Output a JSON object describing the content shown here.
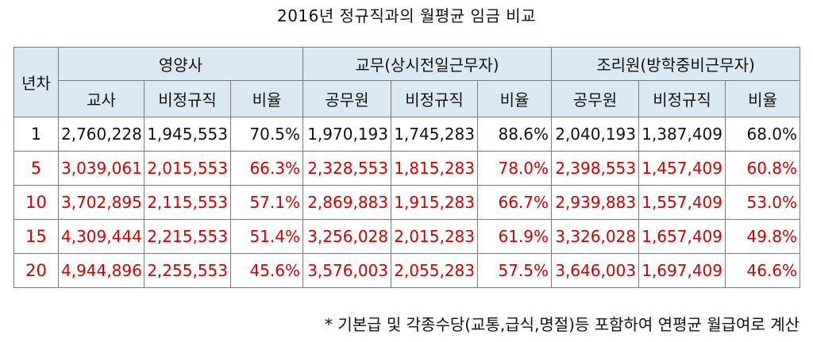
{
  "title": "2016년 정규직과의 월평균 임금 비교",
  "table": {
    "year_header": "년차",
    "groups": [
      {
        "label": "영양사"
      },
      {
        "label": "교무(상시전일근무자)"
      },
      {
        "label": "조리원(방학중비근무자)"
      }
    ],
    "subheaders": [
      "교사",
      "비정규직",
      "비율",
      "공무원",
      "비정규직",
      "비율",
      "공무원",
      "비정규직",
      "비율"
    ],
    "rows": [
      {
        "year": "1",
        "style": "black",
        "cells": [
          "2,760,228",
          "1,945,553",
          "70.5%",
          "1,970,193",
          "1,745,283",
          "88.6%",
          "2,040,193",
          "1,387,409",
          "68.0%"
        ]
      },
      {
        "year": "5",
        "style": "red",
        "cells": [
          "3,039,061",
          "2,015,553",
          "66.3%",
          "2,328,553",
          "1,815,283",
          "78.0%",
          "2,398,553",
          "1,457,409",
          "60.8%"
        ]
      },
      {
        "year": "10",
        "style": "red",
        "cells": [
          "3,702,895",
          "2,115,553",
          "57.1%",
          "2,869,883",
          "1,915,283",
          "66.7%",
          "2,939,883",
          "1,557,409",
          "53.0%"
        ]
      },
      {
        "year": "15",
        "style": "red",
        "cells": [
          "4,309,444",
          "2,215,553",
          "51.4%",
          "3,256,028",
          "2,015,283",
          "61.9%",
          "3,326,028",
          "1,657,409",
          "49.8%"
        ]
      },
      {
        "year": "20",
        "style": "red",
        "cells": [
          "4,944,896",
          "2,255,553",
          "45.6%",
          "3,576,003",
          "2,055,283",
          "57.5%",
          "3,646,003",
          "1,697,409",
          "46.6%"
        ]
      }
    ]
  },
  "note": "* 기본급 및 각종수당(교통,급식,명절)등 포함하여 연평균 월급여로 계산",
  "colors": {
    "header_bg": "#dbe9f5",
    "border": "#7a7a7a",
    "highlight_text": "#d00000",
    "text": "#111111"
  }
}
